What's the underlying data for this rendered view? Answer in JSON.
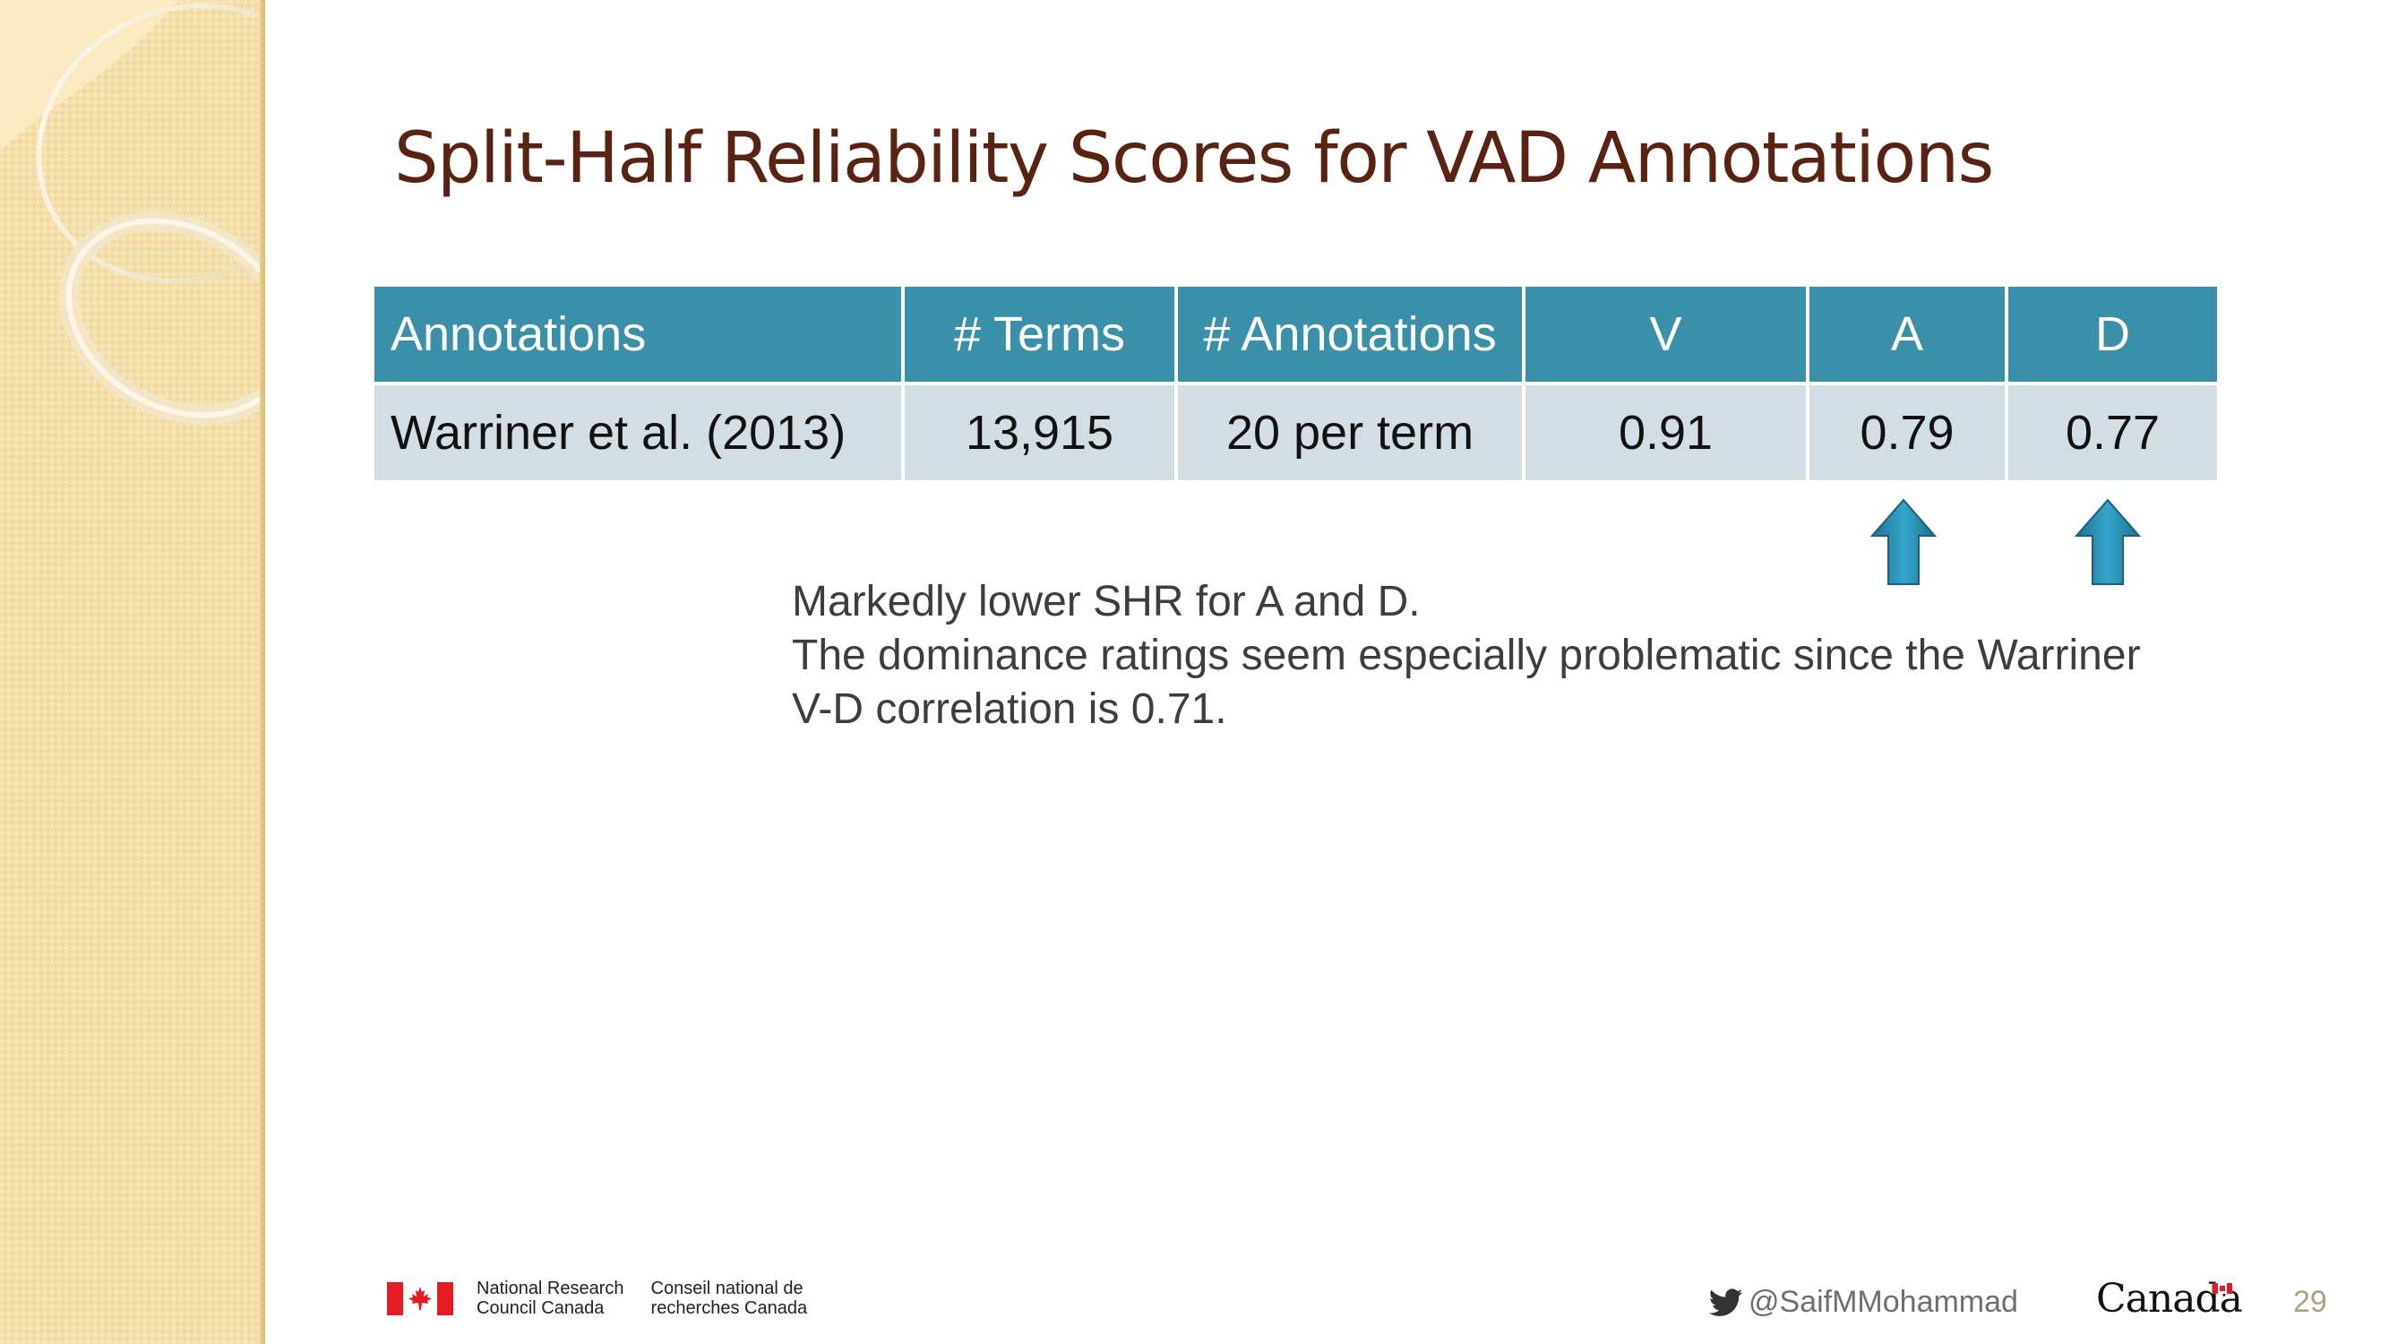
{
  "slide": {
    "title": "Split-Half Reliability Scores for VAD Annotations",
    "page_number": "29"
  },
  "table": {
    "headers": [
      "Annotations",
      "# Terms",
      "# Annotations",
      "V",
      "A",
      "D"
    ],
    "rows": [
      [
        "Warriner et al. (2013)",
        "13,915",
        "20 per term",
        "0.91",
        "0.79",
        "0.77"
      ]
    ]
  },
  "arrows": {
    "icon": "up-arrow-icon",
    "color": "#2b8fb3",
    "columns": [
      "A",
      "D"
    ]
  },
  "note": {
    "lines": [
      "Markedly lower SHR for A and D.",
      "The dominance ratings seem especially problematic since the Warriner",
      "V-D correlation is 0.71."
    ]
  },
  "footer": {
    "nrc_en_line1": "National Research",
    "nrc_en_line2": "Council Canada",
    "nrc_fr_line1": "Conseil national de",
    "nrc_fr_line2": "recherches Canada",
    "twitter_handle": "@SaifMMohammad",
    "wordmark": "Canada",
    "flag_red": "#e31b23"
  }
}
